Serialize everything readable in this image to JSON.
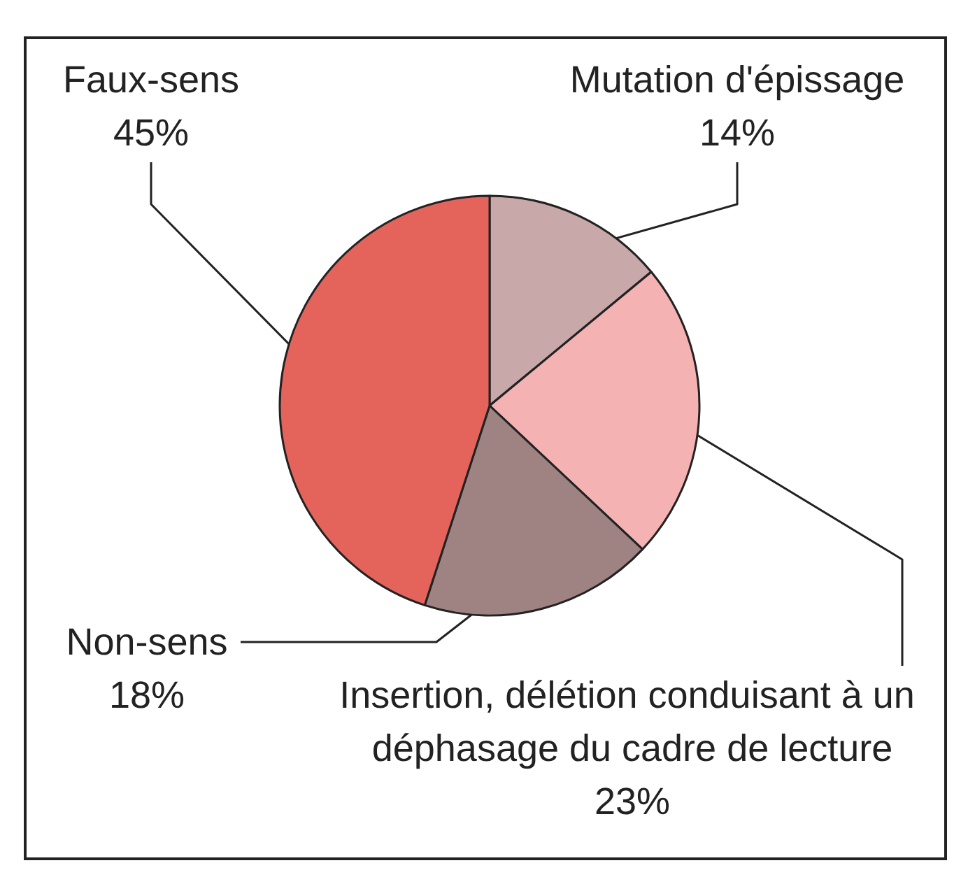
{
  "chart_data": {
    "type": "pie",
    "categories": [
      "Mutation d'épissage",
      "Insertion, délétion conduisant à un déphasage du cadre de lecture",
      "Non-sens",
      "Faux-sens"
    ],
    "values": [
      14,
      23,
      18,
      45
    ],
    "value_labels": [
      "14%",
      "23%",
      "18%",
      "45%"
    ],
    "colors": [
      "#c8a8a9",
      "#f4b3b2",
      "#9f8383",
      "#e4645c"
    ]
  }
}
